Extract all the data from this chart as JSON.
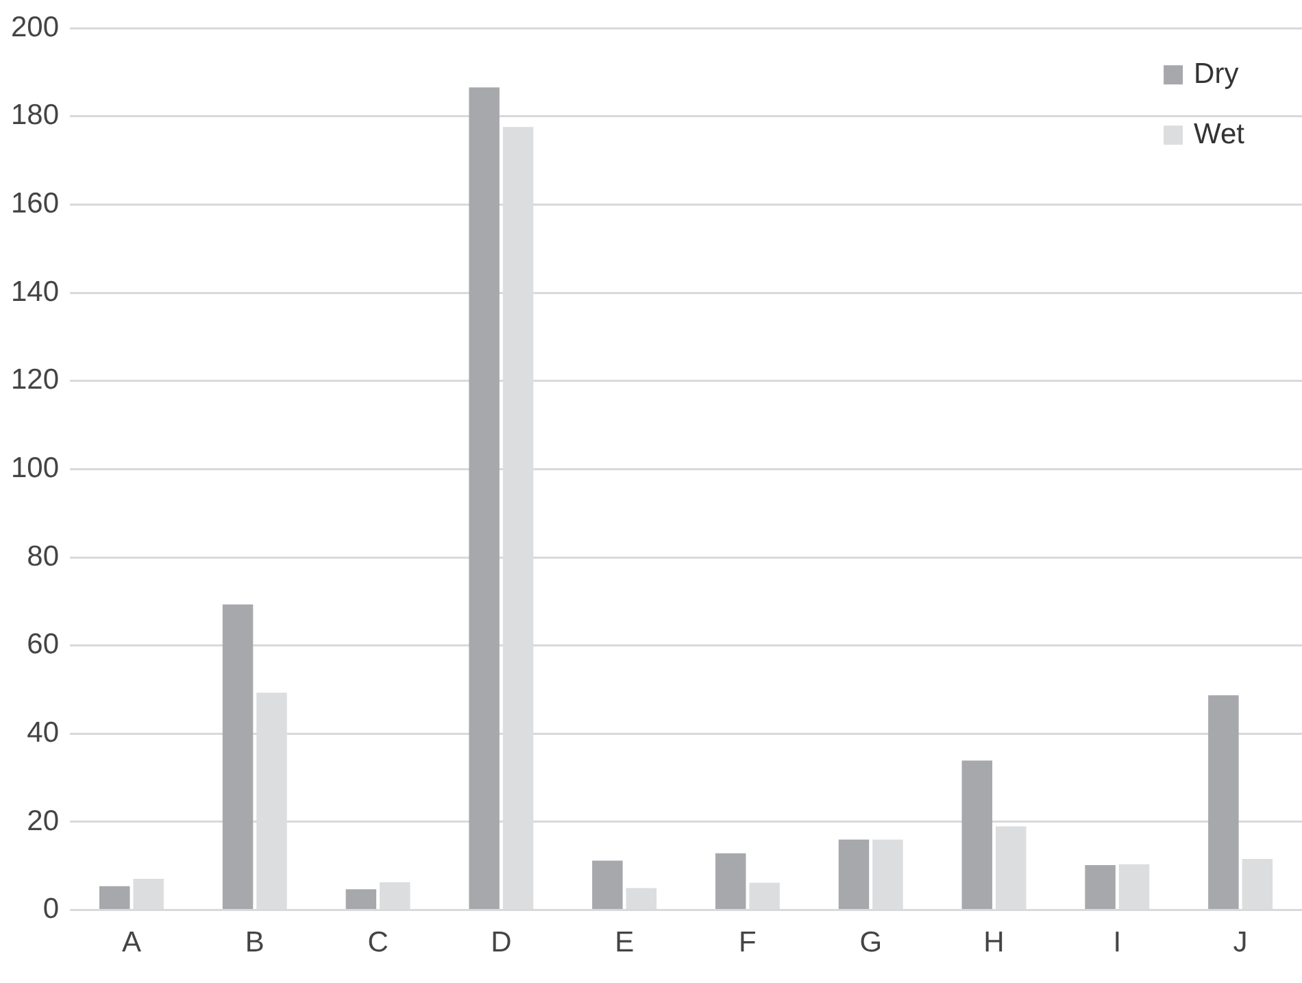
{
  "chart_data": {
    "type": "bar",
    "categories": [
      "A",
      "B",
      "C",
      "D",
      "E",
      "F",
      "G",
      "H",
      "I",
      "J"
    ],
    "series": [
      {
        "name": "Dry",
        "color": "#a7a8ab",
        "values": [
          5.4,
          69.3,
          4.7,
          186.6,
          11.2,
          12.9,
          16.0,
          33.9,
          10.2,
          48.7
        ]
      },
      {
        "name": "Wet",
        "color": "#dcdddf",
        "values": [
          7.1,
          49.3,
          6.3,
          177.6,
          5.0,
          6.2,
          16.0,
          19.0,
          10.4,
          11.6
        ]
      }
    ],
    "ylim": [
      0,
      200
    ],
    "yticks": [
      0,
      20,
      40,
      60,
      80,
      100,
      120,
      140,
      160,
      180,
      200
    ],
    "grid": "y",
    "legend": "top right"
  }
}
